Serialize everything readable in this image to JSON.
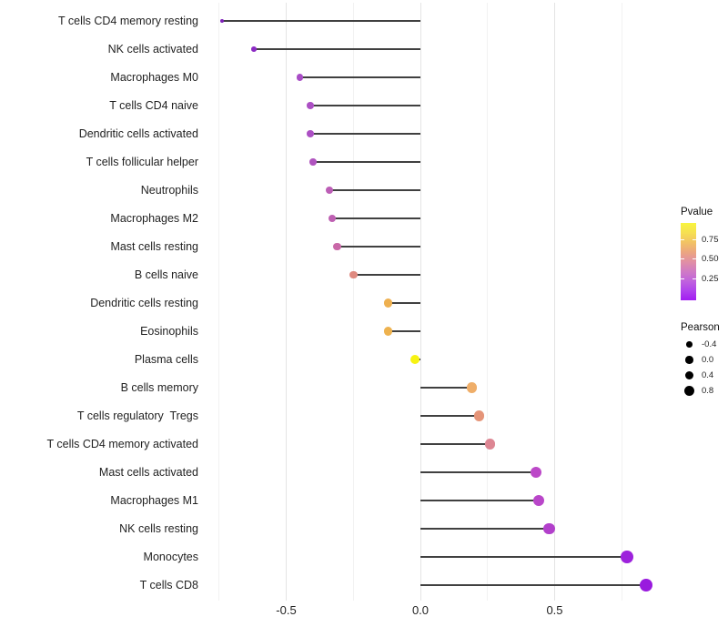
{
  "chart_data": {
    "type": "scatter",
    "variant": "lollipop",
    "orientation": "horizontal",
    "title": "",
    "xlabel": "",
    "ylabel": "",
    "x_ticks": [
      {
        "label": "-0.5",
        "value": -0.5
      },
      {
        "label": "0.0",
        "value": 0.0
      },
      {
        "label": "0.5",
        "value": 0.5
      }
    ],
    "xlim": [
      -0.82,
      0.93
    ],
    "baseline": 0,
    "grid": {
      "major_x": [
        -0.5,
        0.0,
        0.5
      ],
      "minor_x": [
        -0.75,
        -0.25,
        0.25,
        0.75
      ],
      "horizontal": false
    },
    "points": [
      {
        "label": "T cells CD4 memory resting",
        "pearson": -0.74,
        "color": "#7e22b8"
      },
      {
        "label": "NK cells activated",
        "pearson": -0.62,
        "color": "#8c2bc4"
      },
      {
        "label": "Macrophages M0",
        "pearson": -0.45,
        "color": "#a94dc6"
      },
      {
        "label": "T cells CD4 naive",
        "pearson": -0.41,
        "color": "#ac50c4"
      },
      {
        "label": "Dendritic cells activated",
        "pearson": -0.41,
        "color": "#ac50c4"
      },
      {
        "label": "T cells follicular helper",
        "pearson": -0.4,
        "color": "#b054bf"
      },
      {
        "label": "Neutrophils",
        "pearson": -0.34,
        "color": "#bc5eb6"
      },
      {
        "label": "Macrophages M2",
        "pearson": -0.33,
        "color": "#be60b2"
      },
      {
        "label": "Mast cells resting",
        "pearson": -0.31,
        "color": "#c968a8"
      },
      {
        "label": "B cells naive",
        "pearson": -0.25,
        "color": "#df8a80"
      },
      {
        "label": "Dendritic cells resting",
        "pearson": -0.12,
        "color": "#eeb050"
      },
      {
        "label": "Eosinophils",
        "pearson": -0.12,
        "color": "#eeb24e"
      },
      {
        "label": "Plasma cells",
        "pearson": -0.02,
        "color": "#f7f312"
      },
      {
        "label": "B cells memory",
        "pearson": 0.19,
        "color": "#efae69"
      },
      {
        "label": "T cells regulatory  Tregs",
        "pearson": 0.22,
        "color": "#e59478"
      },
      {
        "label": "T cells CD4 memory activated",
        "pearson": 0.26,
        "color": "#dd8693"
      },
      {
        "label": "Mast cells activated",
        "pearson": 0.43,
        "color": "#bc48c8"
      },
      {
        "label": "Macrophages M1",
        "pearson": 0.44,
        "color": "#b946c9"
      },
      {
        "label": "NK cells resting",
        "pearson": 0.48,
        "color": "#b240cb"
      },
      {
        "label": "Monocytes",
        "pearson": 0.77,
        "color": "#9d22dc"
      },
      {
        "label": "T cells CD8",
        "pearson": 0.84,
        "color": "#991ade"
      }
    ],
    "legend_position": "right"
  },
  "legend": {
    "pvalue": {
      "title": "Pvalue",
      "ticks": [
        {
          "label": "0.75",
          "value": 0.75
        },
        {
          "label": "0.50",
          "value": 0.5
        },
        {
          "label": "0.25",
          "value": 0.25
        }
      ],
      "domain": [
        -0.03,
        0.97
      ],
      "gradient_top_to_bottom": [
        "#f8f53e",
        "#f6e052",
        "#f2c364",
        "#eca67f",
        "#e190a4",
        "#d07bc4",
        "#c063dd",
        "#b043ec",
        "#a21df2"
      ]
    },
    "pearson": {
      "title": "Pearson",
      "items": [
        {
          "label": "-0.4",
          "size": 6.5
        },
        {
          "label": "0.0",
          "size": 8.5
        },
        {
          "label": "0.4",
          "size": 9.5
        },
        {
          "label": "0.8",
          "size": 11
        }
      ]
    }
  },
  "colors": {
    "segment": "#404040",
    "grid_major": "#e4e4e4",
    "grid_minor": "#f2f2f2",
    "axis_text": "#1f1f1f",
    "background": "#ffffff"
  }
}
